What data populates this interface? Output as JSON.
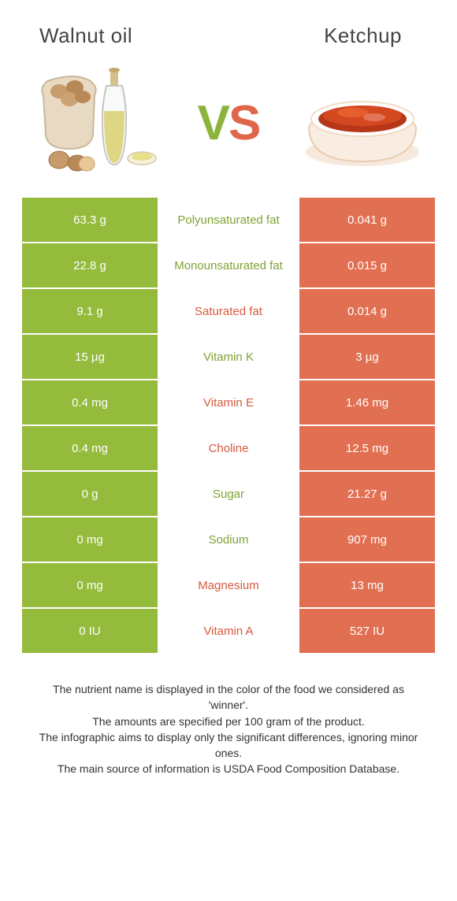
{
  "header": {
    "left_title": "Walnut oil",
    "right_title": "Ketchup"
  },
  "vs": {
    "v": "V",
    "s": "S"
  },
  "colors": {
    "left_bg": "#94bb3c",
    "right_bg": "#e17052",
    "mid_left_win": "#7ea332",
    "mid_right_win": "#d55a3e",
    "page_bg": "#ffffff",
    "text": "#333333"
  },
  "rows": [
    {
      "left": "63.3 g",
      "label": "Polyunsaturated fat",
      "right": "0.041 g",
      "winner": "left"
    },
    {
      "left": "22.8 g",
      "label": "Monounsaturated fat",
      "right": "0.015 g",
      "winner": "left"
    },
    {
      "left": "9.1 g",
      "label": "Saturated fat",
      "right": "0.014 g",
      "winner": "right"
    },
    {
      "left": "15 µg",
      "label": "Vitamin K",
      "right": "3 µg",
      "winner": "left"
    },
    {
      "left": "0.4 mg",
      "label": "Vitamin E",
      "right": "1.46 mg",
      "winner": "right"
    },
    {
      "left": "0.4 mg",
      "label": "Choline",
      "right": "12.5 mg",
      "winner": "right"
    },
    {
      "left": "0 g",
      "label": "Sugar",
      "right": "21.27 g",
      "winner": "left"
    },
    {
      "left": "0 mg",
      "label": "Sodium",
      "right": "907 mg",
      "winner": "left"
    },
    {
      "left": "0 mg",
      "label": "Magnesium",
      "right": "13 mg",
      "winner": "right"
    },
    {
      "left": "0 IU",
      "label": "Vitamin A",
      "right": "527 IU",
      "winner": "right"
    }
  ],
  "footer": {
    "line1": "The nutrient name is displayed in the color of the food we considered as 'winner'.",
    "line2": "The amounts are specified per 100 gram of the product.",
    "line3": "The infographic aims to display only the significant differences, ignoring minor ones.",
    "line4": "The main source of information is USDA Food Composition Database."
  }
}
